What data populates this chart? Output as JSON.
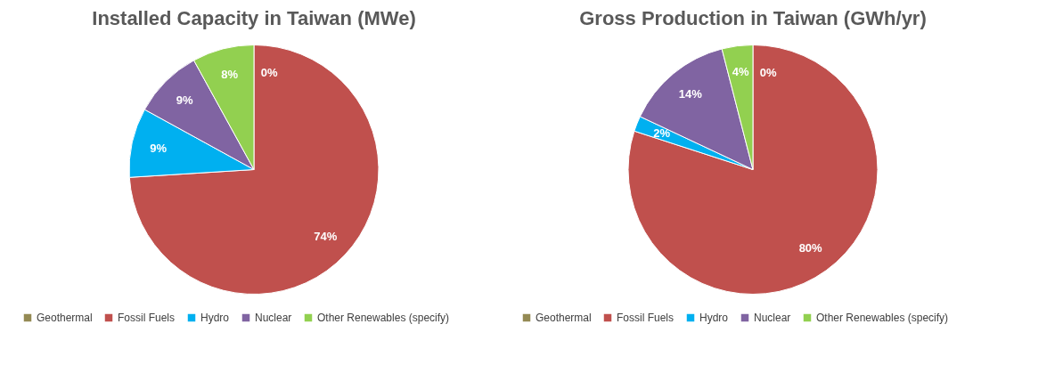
{
  "chart_data": [
    {
      "type": "pie",
      "title": "Installed Capacity in Taiwan (MWe)",
      "categories": [
        "Geothermal",
        "Fossil Fuels",
        "Hydro",
        "Nuclear",
        "Other Renewables (specify)"
      ],
      "values": [
        0,
        74,
        9,
        9,
        8
      ],
      "colors": [
        "#948a54",
        "#c0504d",
        "#00b0f0",
        "#8064a2",
        "#92d050"
      ],
      "value_labels": [
        "0%",
        "74%",
        "9%",
        "9%",
        "8%"
      ],
      "legend": "bottom"
    },
    {
      "type": "pie",
      "title": "Gross Production in Taiwan (GWh/yr)",
      "categories": [
        "Geothermal",
        "Fossil Fuels",
        "Hydro",
        "Nuclear",
        "Other Renewables (specify)"
      ],
      "values": [
        0,
        80,
        2,
        14,
        4
      ],
      "colors": [
        "#948a54",
        "#c0504d",
        "#00b0f0",
        "#8064a2",
        "#92d050"
      ],
      "value_labels": [
        "0%",
        "80%",
        "2%",
        "14%",
        "4%"
      ],
      "legend": "bottom"
    }
  ]
}
